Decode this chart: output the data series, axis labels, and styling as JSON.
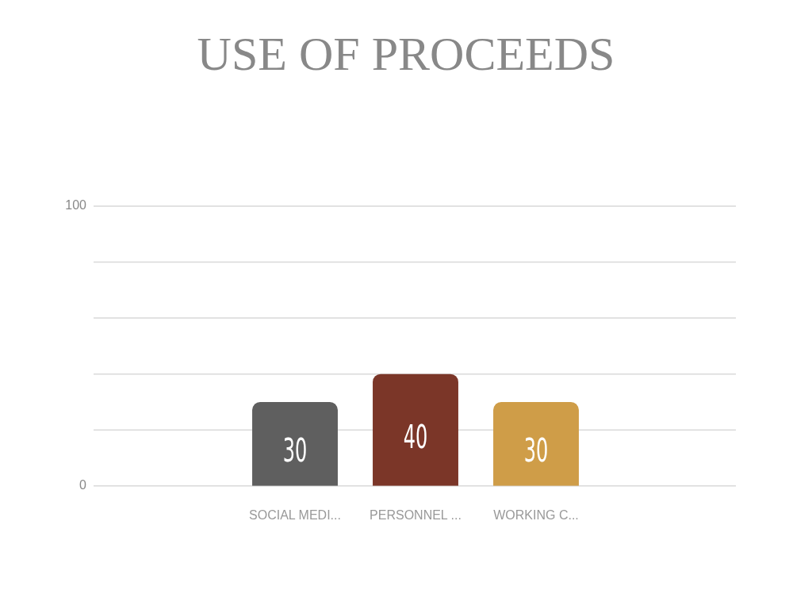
{
  "chart_data": {
    "type": "bar",
    "title": "USE OF PROCEEDS",
    "categories": [
      "SOCIAL MEDI...",
      "PERSONNEL ...",
      "WORKING C..."
    ],
    "values": [
      30,
      40,
      30
    ],
    "colors": [
      "#5f5f5f",
      "#7b3628",
      "#cf9d48"
    ],
    "ylim": [
      0,
      100
    ],
    "yticks": [
      0,
      {
        "value": 20,
        "label": null
      },
      {
        "value": 40,
        "label": null
      },
      {
        "value": 60,
        "label": null
      },
      {
        "value": 80,
        "label": null
      },
      100
    ],
    "grid": "y",
    "data_labels": true
  }
}
